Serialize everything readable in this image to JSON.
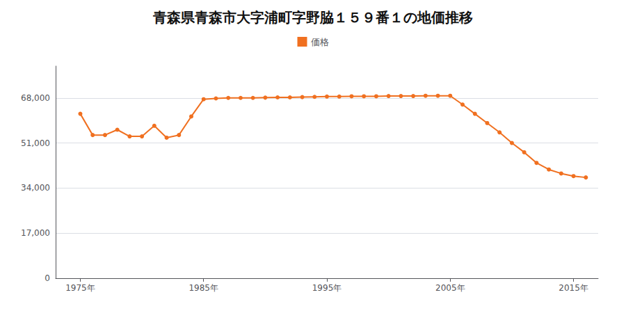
{
  "chart_data": {
    "type": "line",
    "title": "青森県青森市大字浦町字野脇１５９番１の地価推移",
    "x": [
      1975,
      1976,
      1977,
      1978,
      1979,
      1980,
      1981,
      1982,
      1983,
      1984,
      1985,
      1986,
      1987,
      1988,
      1989,
      1990,
      1991,
      1992,
      1993,
      1994,
      1995,
      1996,
      1997,
      1998,
      1999,
      2000,
      2001,
      2002,
      2003,
      2004,
      2005,
      2006,
      2007,
      2008,
      2009,
      2010,
      2011,
      2012,
      2013,
      2014,
      2015,
      2016
    ],
    "series": [
      {
        "name": "価格",
        "color": "#f07020",
        "marker": "circle",
        "values": [
          62000,
          54000,
          54000,
          56000,
          53500,
          53500,
          57500,
          53000,
          54000,
          61000,
          67500,
          67800,
          68000,
          68000,
          68000,
          68100,
          68200,
          68200,
          68300,
          68400,
          68500,
          68500,
          68600,
          68600,
          68600,
          68700,
          68700,
          68700,
          68800,
          68800,
          68800,
          65500,
          62000,
          58500,
          55000,
          51000,
          47500,
          43500,
          41000,
          39500,
          38500,
          38000
        ]
      }
    ],
    "xlim": [
      1973,
      2017
    ],
    "xticks": [
      {
        "value": 1975,
        "label": "1975年"
      },
      {
        "value": 1985,
        "label": "1985年"
      },
      {
        "value": 1995,
        "label": "1995年"
      },
      {
        "value": 2005,
        "label": "2005年"
      },
      {
        "value": 2015,
        "label": "2015年"
      }
    ],
    "ylim": [
      0,
      80000
    ],
    "yticks": [
      0,
      {
        "value": 17000,
        "label": "17,000"
      },
      {
        "value": 34000,
        "label": "34,000"
      },
      {
        "value": 51000,
        "label": "51,000"
      },
      {
        "value": 68000,
        "label": "68,000"
      }
    ],
    "grid": true,
    "legend": "top"
  }
}
